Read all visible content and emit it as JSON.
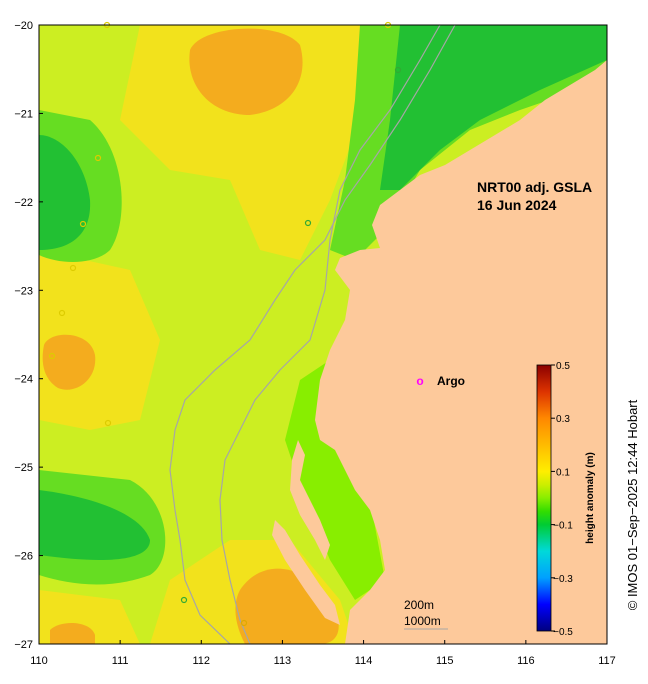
{
  "map": {
    "title_line1": "NRT00 adj. GSLA",
    "title_line2": "16 Jun 2024",
    "lon_ticks": [
      "110",
      "111",
      "112",
      "113",
      "114",
      "115",
      "116",
      "117"
    ],
    "lat_ticks": [
      "−20",
      "−21",
      "−22",
      "−23",
      "−24",
      "−25",
      "−26",
      "−27"
    ],
    "lon_range": [
      110,
      117
    ],
    "lat_range": [
      -27,
      -20
    ],
    "land_color": "#fdc99b",
    "isobath_color": "#a6a6a6"
  },
  "legend": {
    "argo_symbol": "o",
    "argo_label": "Argo",
    "argo_color": "#ff00ff"
  },
  "isobaths": {
    "label_200": "200m",
    "label_1000": "1000m"
  },
  "colorbar": {
    "title": "height anomaly (m)",
    "ticks": [
      "0.5",
      "0.3",
      "0.1",
      "−0.1",
      "−0.3",
      "−0.5"
    ],
    "range": [
      -0.5,
      0.5
    ],
    "colors": [
      "#00007f",
      "#0000ff",
      "#00a0ff",
      "#00d9d9",
      "#00cc33",
      "#33dd00",
      "#88ee00",
      "#ccee00",
      "#ffee00",
      "#ffbb00",
      "#ff8800",
      "#dd3300",
      "#8b0000"
    ]
  },
  "credit": "© IMOS 01−Sep−2025 12:44 Hobart"
}
